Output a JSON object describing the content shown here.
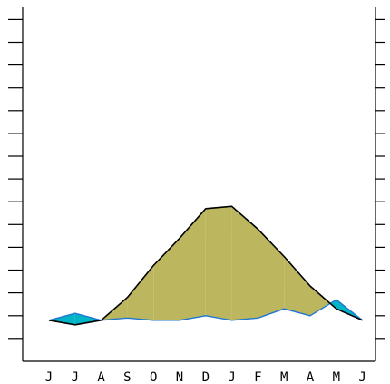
{
  "chart_data": {
    "type": "line",
    "title": "",
    "xlabel": "",
    "ylabel": "",
    "x": [
      "J",
      "J",
      "A",
      "S",
      "O",
      "N",
      "D",
      "J",
      "F",
      "M",
      "A",
      "M",
      "J"
    ],
    "ylim": [
      0,
      14.5
    ],
    "y_ticks": [
      0.5,
      1.5,
      2.5,
      3.5,
      4.5,
      5.5,
      6.5,
      7.5,
      8.5,
      9.5,
      10.5,
      11.5,
      12.5,
      13.5,
      14.5
    ],
    "series": [
      {
        "name": "",
        "style": "black line",
        "color": "#000000",
        "values": [
          1.3,
          1.1,
          1.3,
          2.3,
          3.7,
          4.9,
          6.2,
          6.3,
          5.3,
          4.1,
          2.8,
          1.8,
          1.3
        ]
      },
      {
        "name": "",
        "style": "blue line",
        "color": "#1f78d1",
        "values": [
          1.3,
          1.6,
          1.3,
          1.4,
          1.3,
          1.3,
          1.5,
          1.3,
          1.4,
          1.8,
          1.5,
          2.2,
          1.3
        ]
      }
    ],
    "fills": {
      "above_black": "#00b4c8",
      "above_blue": "#bcb75f"
    },
    "grid": false,
    "legend": "none"
  }
}
